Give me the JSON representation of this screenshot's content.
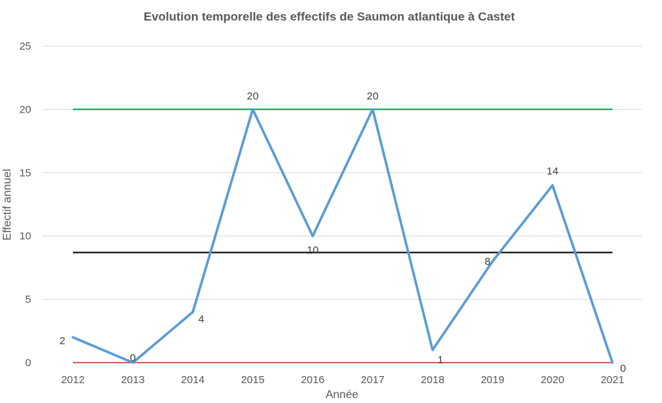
{
  "chart_data": {
    "type": "line",
    "title": "Evolution temporelle des effectifs de Saumon atlantique à Castet",
    "xlabel": "Année",
    "ylabel": "Effectif annuel",
    "categories": [
      "2012",
      "2013",
      "2014",
      "2015",
      "2016",
      "2017",
      "2018",
      "2019",
      "2020",
      "2021"
    ],
    "series": [
      {
        "values": [
          2,
          0,
          4,
          20,
          10,
          20,
          1,
          8,
          14,
          0
        ],
        "color": "#5b9bd5"
      }
    ],
    "reference_lines": [
      {
        "value": 20,
        "color": "#00a550"
      },
      {
        "value": 8.7,
        "color": "#000000"
      },
      {
        "value": 0,
        "color": "#c00000"
      }
    ],
    "ylim": [
      0,
      25
    ],
    "yticks": [
      0,
      5,
      10,
      15,
      20,
      25
    ],
    "grid": true,
    "legend": "none"
  }
}
